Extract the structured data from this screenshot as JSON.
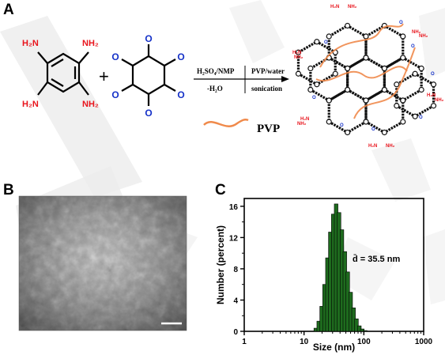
{
  "panels": {
    "a": "A",
    "b": "B",
    "c": "C"
  },
  "scheme": {
    "reactant1_amines": [
      "H₂N",
      "NH₂",
      "H₂N",
      "NH₂"
    ],
    "plus": "+",
    "reactant2_oxygens": [
      "O",
      "O",
      "O",
      "O",
      "O",
      "O"
    ],
    "step1_top": "H₂SO₄/NMP",
    "step1_bottom": "-H₂O",
    "step2_top": "PVP/water",
    "step2_bottom": "sonication",
    "legend_label": "PVP",
    "network_edge_labels": [
      "H₂N",
      "NH₂",
      "NH₂",
      "NH₂",
      "H₂N",
      "NH₂",
      "H₂N",
      "NH₂",
      "H₂N",
      "NH₂",
      "H₂N",
      "NH₂"
    ],
    "network_o_label": "O"
  },
  "colors": {
    "amine": "#e8141c",
    "oxygen": "#1531c8",
    "pvp": "#f08a4b",
    "bar": "#1e6b1e",
    "bar_edge": "#000000",
    "watermark": "#e6e6e6"
  },
  "chart_data": {
    "type": "bar",
    "xlabel": "Size (nm)",
    "ylabel": "Number (percent)",
    "xscale": "log",
    "xlim": [
      1,
      1000
    ],
    "ylim": [
      0,
      17
    ],
    "xticks": [
      "1",
      "10",
      "100",
      "1000"
    ],
    "yticks": [
      "0",
      "4",
      "8",
      "12",
      "16"
    ],
    "annotation": "d̄ = 35.5 nm",
    "x": [
      15.7,
      17.6,
      19.7,
      22.0,
      24.6,
      27.5,
      30.8,
      34.4,
      38.5,
      43.0,
      48.1,
      53.8,
      60.2,
      67.3,
      75.3,
      84.2,
      94.2,
      105.4
    ],
    "values": [
      0.4,
      1.3,
      3.2,
      6.0,
      9.4,
      12.7,
      15.0,
      16.3,
      15.2,
      13.0,
      10.2,
      7.6,
      5.0,
      3.0,
      1.6,
      0.7,
      0.3,
      0.1
    ]
  }
}
